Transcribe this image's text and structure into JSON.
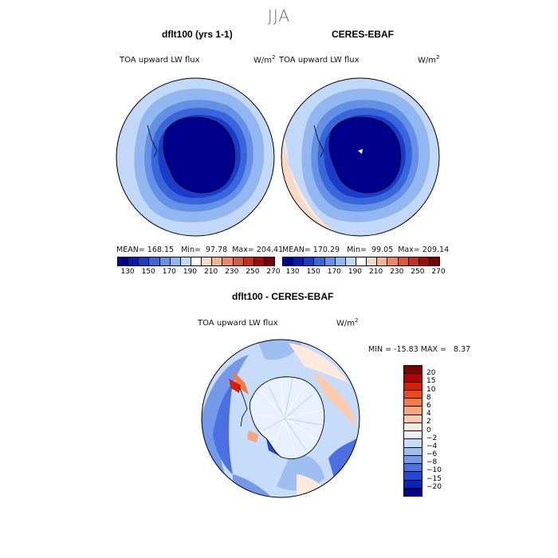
{
  "season": "JJA",
  "panels": [
    {
      "title": "dflt100 (yrs 1-1)",
      "variable": "TOA upward LW flux",
      "unit": "W/m",
      "unit_exp": "2",
      "mean_label": "MEAN=",
      "mean": "168.15",
      "min_label": "Min=",
      "min": "97.78",
      "max_label": "Max=",
      "max": "204.41"
    },
    {
      "title": "CERES-EBAF",
      "variable": "TOA upward LW flux",
      "unit": "W/m",
      "unit_exp": "2",
      "mean_label": "MEAN=",
      "mean": "170.29",
      "min_label": "Min=",
      "min": "99.05",
      "max_label": "Max=",
      "max": "209.14"
    }
  ],
  "colorbar": {
    "colors": [
      "#00008c",
      "#0a1aa8",
      "#1a3cc8",
      "#3a66dc",
      "#6490e6",
      "#92b6f0",
      "#c2d8f8",
      "#ffffff",
      "#f8d8c6",
      "#f4b496",
      "#ec8866",
      "#dc5a3c",
      "#c82e1c",
      "#a00c0a",
      "#780000"
    ],
    "tick_labels": [
      "130",
      "150",
      "170",
      "190",
      "210",
      "230",
      "250",
      "270"
    ]
  },
  "diff": {
    "title": "dflt100 - CERES-EBAF",
    "variable": "TOA upward LW flux",
    "unit": "W/m",
    "unit_exp": "2",
    "min_label": "MIN =",
    "min": "-15.83",
    "max_label": "MAX =",
    "max": "8.37",
    "colors": [
      "#800000",
      "#b20000",
      "#d82000",
      "#f04818",
      "#f47a46",
      "#f8a47c",
      "#fccaae",
      "#fdeadc",
      "#e8f0fc",
      "#c6dcf8",
      "#9ebef0",
      "#7498ea",
      "#4a70e2",
      "#2448d4",
      "#0c22b8",
      "#000090"
    ],
    "tick_labels": [
      "20",
      "15",
      "10",
      "8",
      "6",
      "4",
      "2",
      "0",
      "−2",
      "−4",
      "−6",
      "−8",
      "−10",
      "−15",
      "−20"
    ]
  }
}
